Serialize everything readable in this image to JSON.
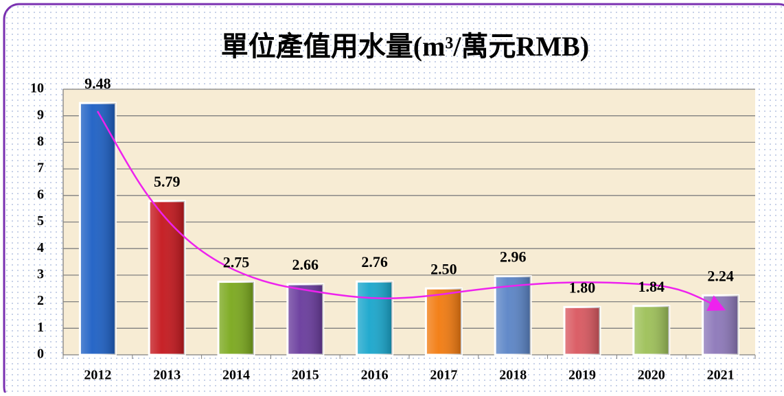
{
  "chart_data": {
    "type": "bar",
    "title": "單位產值用水量(m³/萬元RMB)",
    "categories": [
      "2012",
      "2013",
      "2014",
      "2015",
      "2016",
      "2017",
      "2018",
      "2019",
      "2020",
      "2021"
    ],
    "values": [
      9.48,
      5.79,
      2.75,
      2.66,
      2.76,
      2.5,
      2.96,
      1.8,
      1.84,
      2.24
    ],
    "value_labels": [
      "9.48",
      "5.79",
      "2.75",
      "2.66",
      "2.76",
      "2.50",
      "2.96",
      "1.80",
      "1.84",
      "2.24"
    ],
    "colors": [
      "#1c5fc4",
      "#c4161c",
      "#7aa81c",
      "#683a9c",
      "#18a6cc",
      "#f27a0e",
      "#5a84c6",
      "#d9575f",
      "#9dc057",
      "#8c77b9"
    ],
    "ylim": [
      0,
      10
    ],
    "yticks": [
      0,
      1,
      2,
      3,
      4,
      5,
      6,
      7,
      8,
      9,
      10
    ],
    "grid": true
  }
}
